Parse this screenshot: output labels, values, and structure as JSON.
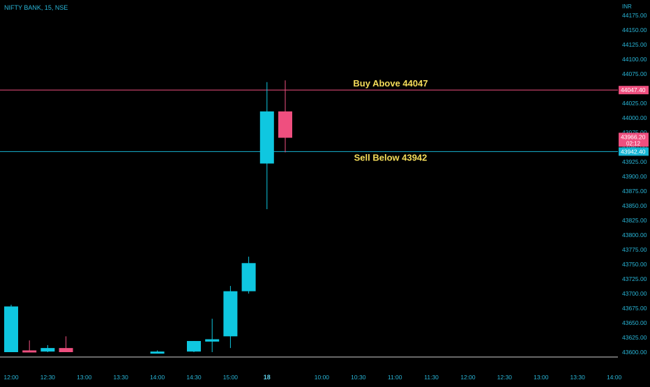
{
  "header": {
    "symbol": "NIFTY BANK, 15, NSE",
    "currency": "INR"
  },
  "colors": {
    "background": "#000000",
    "up": "#0fc7e0",
    "down": "#ef4f7f",
    "axis_text": "#29b6d8",
    "resistance": "#ef4f7f",
    "support": "#17b6d4",
    "annotation": "#f5dd5a",
    "baseline": "#d0d0d0"
  },
  "chart_data": {
    "type": "candlestick",
    "y_axis": {
      "min": 43600,
      "max": 44175,
      "ticks": [
        43600,
        43625,
        43650,
        43675,
        43700,
        43725,
        43750,
        43775,
        43800,
        43825,
        43850,
        43875,
        43900,
        43925,
        43950,
        43975,
        44000,
        44025,
        44050,
        44075,
        44100,
        44125,
        44150,
        44175
      ],
      "tick_labels": [
        "43600.00",
        "43625.00",
        "43650.00",
        "43675.00",
        "43700.00",
        "43725.00",
        "43750.00",
        "43775.00",
        "43800.00",
        "43825.00",
        "43850.00",
        "43875.00",
        "43900.00",
        "43925.00",
        "43950.00",
        "43975.00",
        "44000.00",
        "44025.00",
        "44050.00",
        "44075.00",
        "44100.00",
        "44125.00",
        "44150.00",
        "44175.00"
      ]
    },
    "x_axis": {
      "labels": [
        {
          "text": "12:00",
          "slot": 0,
          "bold": false
        },
        {
          "text": "12:30",
          "slot": 2,
          "bold": false
        },
        {
          "text": "13:00",
          "slot": 4,
          "bold": false
        },
        {
          "text": "13:30",
          "slot": 6,
          "bold": false
        },
        {
          "text": "14:00",
          "slot": 8,
          "bold": false
        },
        {
          "text": "14:30",
          "slot": 10,
          "bold": false
        },
        {
          "text": "15:00",
          "slot": 12,
          "bold": false
        },
        {
          "text": "18",
          "slot": 14,
          "bold": true
        },
        {
          "text": "10:00",
          "slot": 17,
          "bold": false
        },
        {
          "text": "10:30",
          "slot": 19,
          "bold": false
        },
        {
          "text": "11:00",
          "slot": 21,
          "bold": false
        },
        {
          "text": "11:30",
          "slot": 23,
          "bold": false
        },
        {
          "text": "12:00",
          "slot": 25,
          "bold": false
        },
        {
          "text": "12:30",
          "slot": 27,
          "bold": false
        },
        {
          "text": "13:00",
          "slot": 29,
          "bold": false
        },
        {
          "text": "13:30",
          "slot": 31,
          "bold": false
        },
        {
          "text": "14:00",
          "slot": 33,
          "bold": false
        }
      ]
    },
    "candles": [
      {
        "slot": 0,
        "open": 43600,
        "high": 43681,
        "low": 43600,
        "close": 43678
      },
      {
        "slot": 1,
        "open": 43603,
        "high": 43620,
        "low": 43600,
        "close": 43600
      },
      {
        "slot": 2,
        "open": 43601,
        "high": 43612,
        "low": 43600,
        "close": 43607
      },
      {
        "slot": 3,
        "open": 43607,
        "high": 43627,
        "low": 43600,
        "close": 43600
      },
      {
        "slot": 8,
        "open": 43600,
        "high": 43603,
        "low": 43600,
        "close": 43601
      },
      {
        "slot": 10,
        "open": 43601,
        "high": 43619,
        "low": 43600,
        "close": 43619
      },
      {
        "slot": 11,
        "open": 43618,
        "high": 43657,
        "low": 43600,
        "close": 43622
      },
      {
        "slot": 12,
        "open": 43627,
        "high": 43713,
        "low": 43607,
        "close": 43704
      },
      {
        "slot": 13,
        "open": 43704,
        "high": 43763,
        "low": 43700,
        "close": 43752
      },
      {
        "slot": 14,
        "open": 43922,
        "high": 44061,
        "low": 43844,
        "close": 44011
      },
      {
        "slot": 15,
        "open": 44011,
        "high": 44064,
        "low": 43941,
        "close": 43966
      }
    ],
    "horizontal_lines": [
      {
        "name": "resistance",
        "value": 44047.4,
        "price_label": "44047.40",
        "text": "Buy Above 44047",
        "text_position": "above"
      },
      {
        "name": "support",
        "value": 43942.4,
        "price_label": "43942.40",
        "text": "Sell Below 43942",
        "text_position": "below"
      }
    ],
    "last_price": {
      "value": 43966.2,
      "label": "43966.20",
      "countdown": "02:12"
    }
  }
}
